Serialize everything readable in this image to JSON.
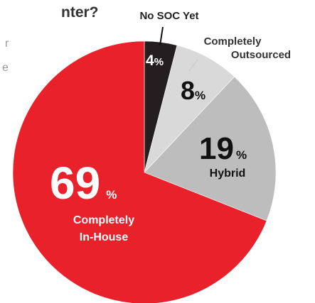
{
  "header": {
    "title_fragment": "nter?",
    "side_fragment_1": "r",
    "side_fragment_2": "e"
  },
  "colors": {
    "in_house": "#e8212b",
    "hybrid": "#bdbdbd",
    "outsourced": "#d9d9d9",
    "no_soc": "#231f20",
    "text_dark": "#333333",
    "text_white": "#ffffff"
  },
  "chart_data": {
    "type": "pie",
    "title": "",
    "unit": "%",
    "legend": "none",
    "slices": [
      {
        "name": "No SOC Yet",
        "value": 4,
        "value_label": "4",
        "pct_label": "%",
        "label_lines": [
          "No SOC Yet"
        ],
        "color": "#231f20"
      },
      {
        "name": "Completely Outsourced",
        "value": 8,
        "value_label": "8",
        "pct_label": "%",
        "label_lines": [
          "Completely",
          "Outsourced"
        ],
        "color": "#d9d9d9"
      },
      {
        "name": "Hybrid",
        "value": 19,
        "value_label": "19",
        "pct_label": "%",
        "label_lines": [
          "Hybrid"
        ],
        "color": "#bdbdbd"
      },
      {
        "name": "Completely In-House",
        "value": 69,
        "value_label": "69",
        "pct_label": "%",
        "label_lines": [
          "Completely",
          "In-House"
        ],
        "color": "#e8212b"
      }
    ]
  }
}
